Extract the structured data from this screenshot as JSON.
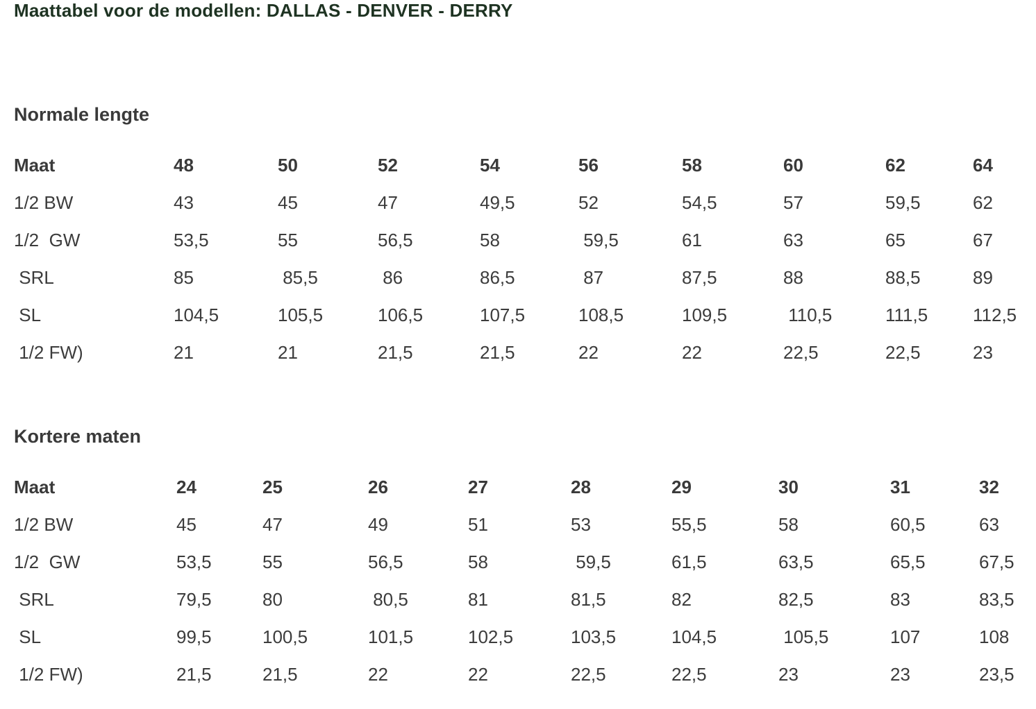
{
  "title": "Maattabel voor de modellen: DALLAS - DENVER - DERRY",
  "sections": [
    {
      "heading": "Normale lengte",
      "rows": [
        [
          "Maat",
          "48",
          "50",
          "52",
          "54",
          "56",
          "58",
          "60",
          "62",
          "64"
        ],
        [
          "1/2 BW",
          "43",
          "45",
          "47",
          "49,5",
          "52",
          "54,5",
          "57",
          "59,5",
          "62"
        ],
        [
          "1/2  GW",
          "53,5",
          "55",
          "56,5",
          "58",
          " 59,5",
          "61",
          "63",
          "65",
          "67"
        ],
        [
          " SRL",
          "85",
          " 85,5",
          " 86",
          "86,5",
          " 87",
          "87,5",
          "88",
          "88,5",
          "89"
        ],
        [
          " SL",
          "104,5",
          "105,5",
          "106,5",
          "107,5",
          "108,5",
          "109,5",
          " 110,5",
          "111,5",
          "112,5"
        ],
        [
          " 1/2 FW)",
          "21",
          "21",
          "21,5",
          "21,5",
          "22",
          "22",
          "22,5",
          "22,5",
          "23"
        ]
      ]
    },
    {
      "heading": "Kortere maten",
      "rows": [
        [
          "Maat",
          "24",
          "25",
          "26",
          "27",
          "28",
          "29",
          "30",
          "31",
          "32"
        ],
        [
          "1/2 BW",
          "45",
          "47",
          "49",
          "51",
          "53",
          "55,5",
          "58",
          "60,5",
          "63"
        ],
        [
          "1/2  GW",
          "53,5",
          "55",
          "56,5",
          "58",
          " 59,5",
          "61,5",
          "63,5",
          "65,5",
          "67,5"
        ],
        [
          " SRL",
          "79,5",
          "80",
          " 80,5",
          "81",
          "81,5",
          "82",
          "82,5",
          "83",
          "83,5"
        ],
        [
          " SL",
          "99,5",
          "100,5",
          "101,5",
          "102,5",
          "103,5",
          "104,5",
          " 105,5",
          "107",
          "108"
        ],
        [
          " 1/2 FW)",
          "21,5",
          "21,5",
          "22",
          "22",
          "22,5",
          "22,5",
          "23",
          "23",
          "23,5"
        ]
      ]
    }
  ]
}
